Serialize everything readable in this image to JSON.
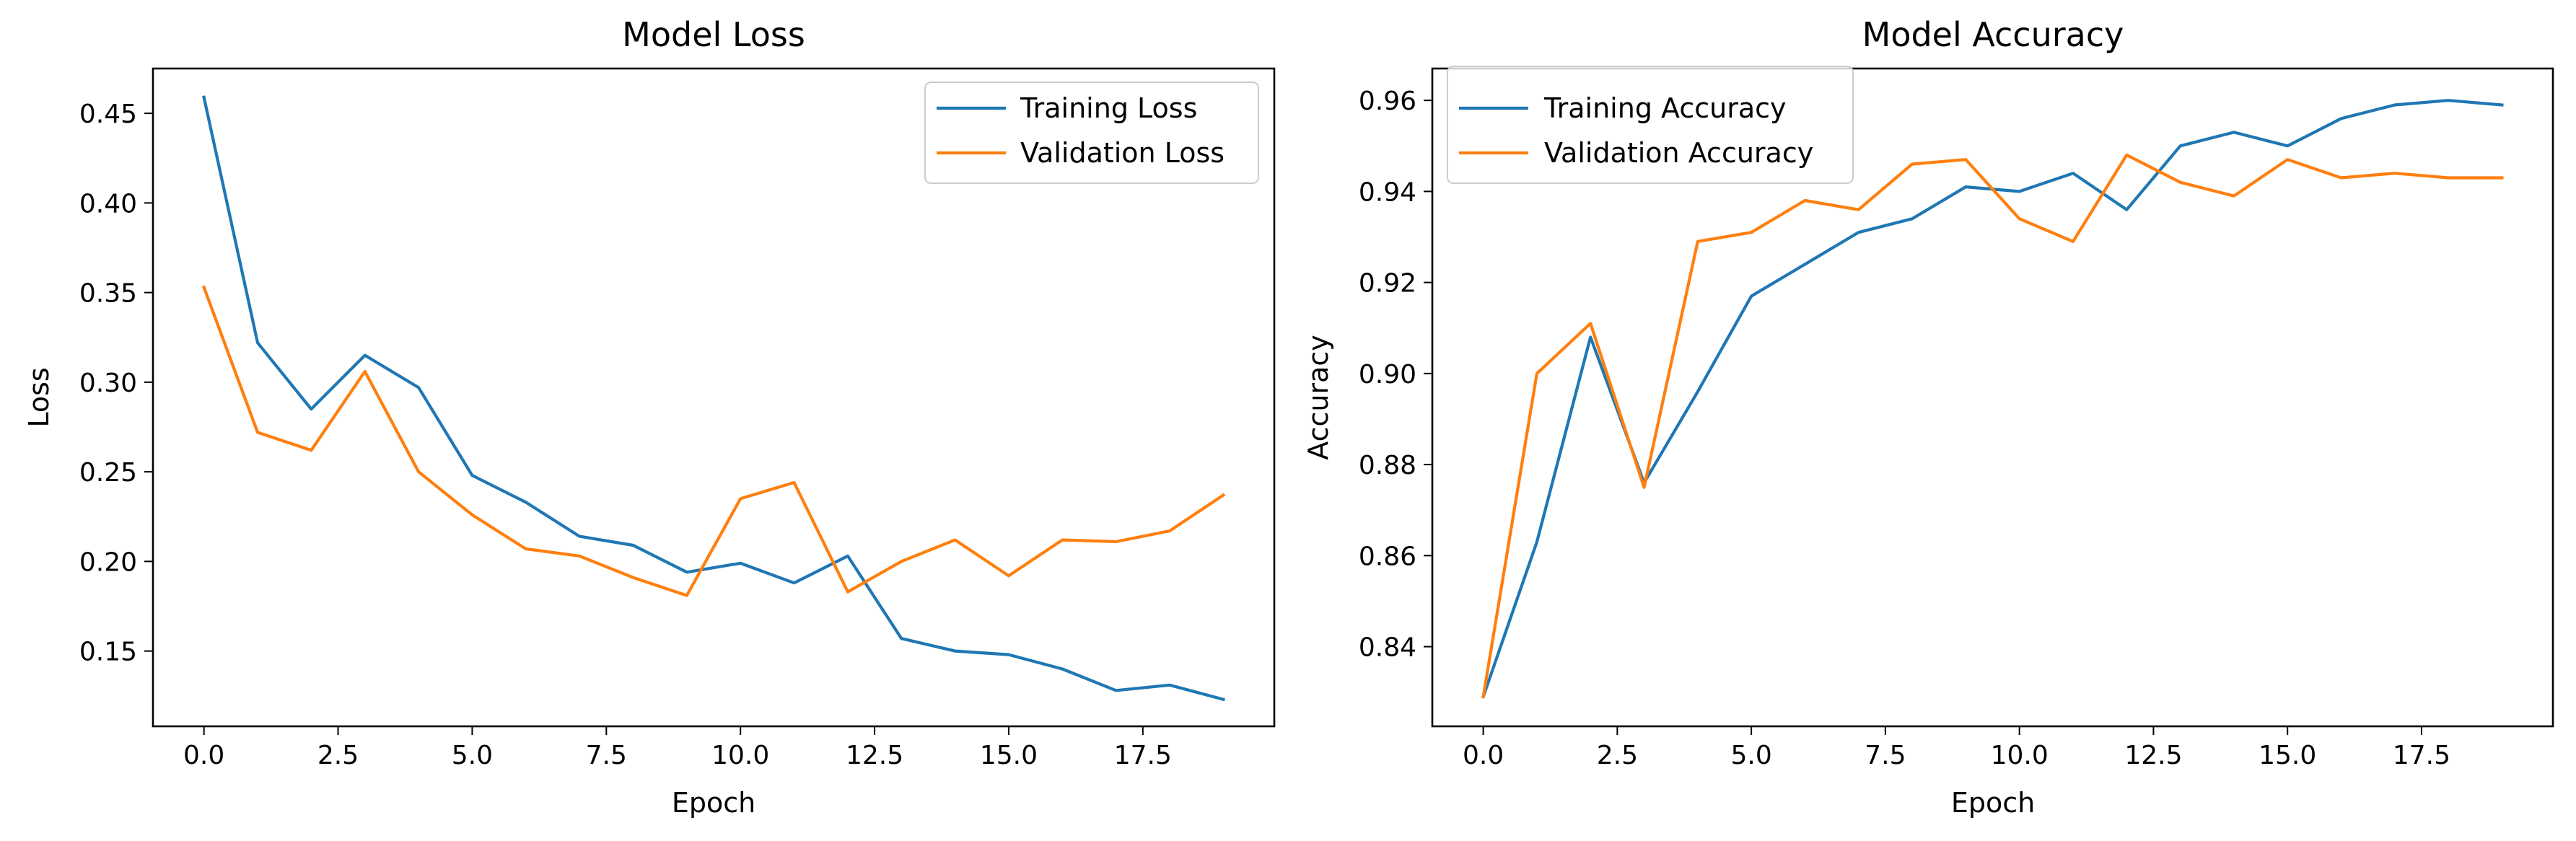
{
  "chart_data": [
    {
      "type": "line",
      "title": "Model Loss",
      "xlabel": "Epoch",
      "ylabel": "Loss",
      "xlim": [
        -0.95,
        19.95
      ],
      "ylim": [
        0.108,
        0.475
      ],
      "xticks": [
        0.0,
        2.5,
        5.0,
        7.5,
        10.0,
        12.5,
        15.0,
        17.5
      ],
      "xtick_labels": [
        "0.0",
        "2.5",
        "5.0",
        "7.5",
        "10.0",
        "12.5",
        "15.0",
        "17.5"
      ],
      "yticks": [
        0.15,
        0.2,
        0.25,
        0.3,
        0.35,
        0.4,
        0.45
      ],
      "ytick_labels": [
        "0.15",
        "0.20",
        "0.25",
        "0.30",
        "0.35",
        "0.40",
        "0.45"
      ],
      "legend_position": "top-right",
      "grid": false,
      "x": [
        0,
        1,
        2,
        3,
        4,
        5,
        6,
        7,
        8,
        9,
        10,
        11,
        12,
        13,
        14,
        15,
        16,
        17,
        18,
        19
      ],
      "series": [
        {
          "name": "Training Loss",
          "color": "#1f77b4",
          "values": [
            0.459,
            0.322,
            0.285,
            0.315,
            0.297,
            0.248,
            0.233,
            0.214,
            0.209,
            0.194,
            0.199,
            0.188,
            0.203,
            0.157,
            0.15,
            0.148,
            0.14,
            0.128,
            0.131,
            0.123
          ]
        },
        {
          "name": "Validation Loss",
          "color": "#ff7f0e",
          "values": [
            0.353,
            0.272,
            0.262,
            0.306,
            0.25,
            0.226,
            0.207,
            0.203,
            0.191,
            0.181,
            0.235,
            0.244,
            0.183,
            0.2,
            0.212,
            0.192,
            0.212,
            0.211,
            0.217,
            0.237
          ]
        }
      ]
    },
    {
      "type": "line",
      "title": "Model Accuracy",
      "xlabel": "Epoch",
      "ylabel": "Accuracy",
      "xlim": [
        -0.95,
        19.95
      ],
      "ylim": [
        0.8225,
        0.967
      ],
      "xticks": [
        0.0,
        2.5,
        5.0,
        7.5,
        10.0,
        12.5,
        15.0,
        17.5
      ],
      "xtick_labels": [
        "0.0",
        "2.5",
        "5.0",
        "7.5",
        "10.0",
        "12.5",
        "15.0",
        "17.5"
      ],
      "yticks": [
        0.84,
        0.86,
        0.88,
        0.9,
        0.92,
        0.94,
        0.96
      ],
      "ytick_labels": [
        "0.84",
        "0.86",
        "0.88",
        "0.90",
        "0.92",
        "0.94",
        "0.96"
      ],
      "legend_position": "top-left",
      "grid": false,
      "x": [
        0,
        1,
        2,
        3,
        4,
        5,
        6,
        7,
        8,
        9,
        10,
        11,
        12,
        13,
        14,
        15,
        16,
        17,
        18,
        19
      ],
      "series": [
        {
          "name": "Training Accuracy",
          "color": "#1f77b4",
          "values": [
            0.829,
            0.863,
            0.908,
            0.876,
            0.896,
            0.917,
            0.924,
            0.931,
            0.934,
            0.941,
            0.94,
            0.944,
            0.936,
            0.95,
            0.953,
            0.95,
            0.956,
            0.959,
            0.96,
            0.959
          ]
        },
        {
          "name": "Validation Accuracy",
          "color": "#ff7f0e",
          "values": [
            0.829,
            0.9,
            0.911,
            0.875,
            0.929,
            0.931,
            0.938,
            0.936,
            0.946,
            0.947,
            0.934,
            0.929,
            0.948,
            0.942,
            0.939,
            0.947,
            0.943,
            0.944,
            0.943,
            0.943
          ]
        }
      ]
    }
  ]
}
